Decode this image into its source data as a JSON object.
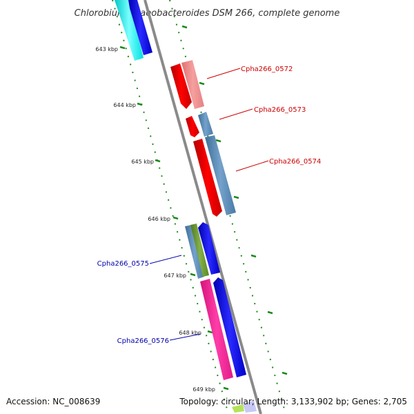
{
  "title": "Chlorobium phaeobacteroides DSM 266, complete genome",
  "accession": "Accession: NC_008639",
  "summary": "Topology: circular; Length: 3,133,902 bp; Genes: 2,705",
  "colors": {
    "backbone": "#888888",
    "tick": "#1a8a1a",
    "label_red": "#cc0000",
    "label_blue": "#0000aa"
  },
  "tick_labels": [
    "643 kbp",
    "644 kbp",
    "645 kbp",
    "646 kbp",
    "647 kbp",
    "648 kbp",
    "649 kbp"
  ],
  "gene_labels": [
    {
      "text": "Cpha266_0572",
      "color": "red"
    },
    {
      "text": "Cpha266_0573",
      "color": "red"
    },
    {
      "text": "Cpha266_0574",
      "color": "red"
    },
    {
      "text": "Cpha266_0575",
      "color": "blue"
    },
    {
      "text": "Cpha266_0576",
      "color": "blue"
    }
  ]
}
